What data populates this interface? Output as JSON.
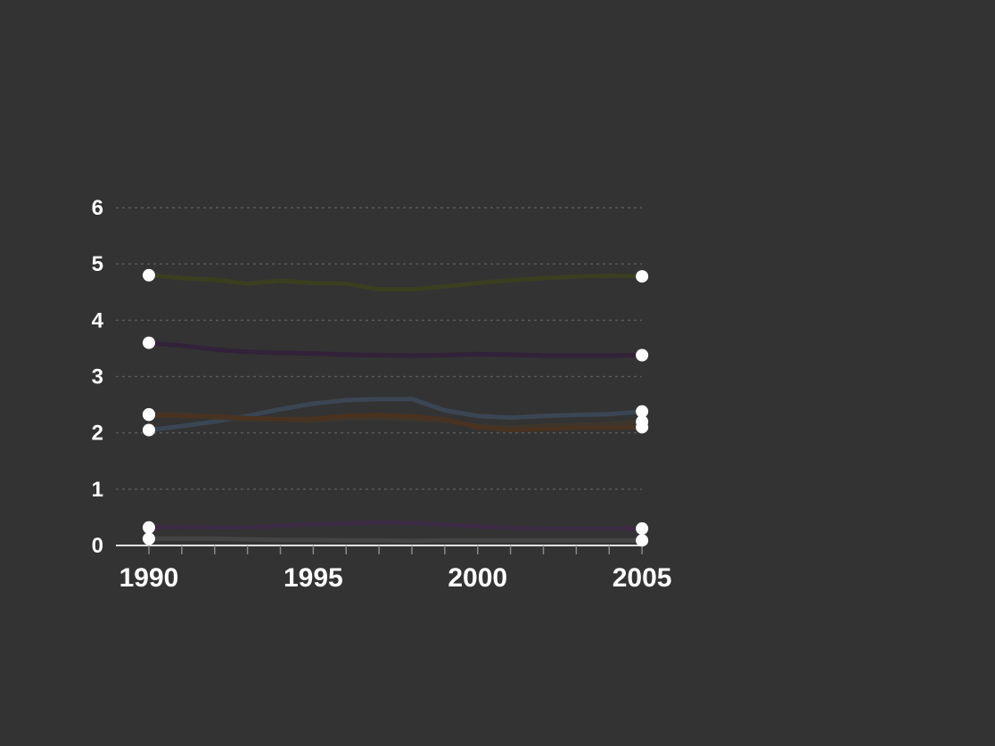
{
  "chart_data": {
    "type": "line",
    "title": "",
    "xlabel": "",
    "ylabel": "",
    "source": "",
    "x": [
      1990,
      1991,
      1992,
      1993,
      1994,
      1995,
      1996,
      1997,
      1998,
      1999,
      2000,
      2001,
      2002,
      2003,
      2004,
      2005
    ],
    "x_ticks": [
      1990,
      1995,
      2000,
      2005
    ],
    "xlim": [
      1990,
      2006
    ],
    "ylim": [
      0,
      6
    ],
    "y_ticks": [
      0,
      1,
      2,
      3,
      4,
      5,
      6
    ],
    "grid": true,
    "series": [
      {
        "name": "",
        "color": "#3b3f1f",
        "values": [
          4.8,
          4.75,
          4.72,
          4.65,
          4.7,
          4.66,
          4.65,
          4.55,
          4.55,
          4.6,
          4.66,
          4.71,
          4.75,
          4.78,
          4.79,
          4.78
        ]
      },
      {
        "name": "",
        "color": "#33213a",
        "values": [
          3.6,
          3.55,
          3.48,
          3.44,
          3.42,
          3.41,
          3.39,
          3.38,
          3.37,
          3.38,
          3.4,
          3.39,
          3.37,
          3.37,
          3.37,
          3.38
        ]
      },
      {
        "name": "",
        "color": "#3a4654",
        "values": [
          2.05,
          2.12,
          2.2,
          2.3,
          2.42,
          2.52,
          2.58,
          2.6,
          2.6,
          2.4,
          2.3,
          2.27,
          2.3,
          2.32,
          2.33,
          2.38
        ]
      },
      {
        "name": "",
        "color": "#3e362c",
        "values": [
          2.33,
          2.33,
          2.28,
          2.24,
          2.24,
          2.21,
          2.26,
          2.26,
          2.24,
          2.22,
          2.12,
          2.09,
          2.13,
          2.14,
          2.16,
          2.2
        ]
      },
      {
        "name": "",
        "color": "#4a3220",
        "values": [
          2.32,
          2.3,
          2.29,
          2.26,
          2.24,
          2.25,
          2.3,
          2.32,
          2.29,
          2.24,
          2.1,
          2.05,
          2.07,
          2.09,
          2.09,
          2.1
        ]
      },
      {
        "name": "",
        "color": "#3d2a44",
        "values": [
          0.32,
          0.33,
          0.32,
          0.32,
          0.35,
          0.38,
          0.39,
          0.41,
          0.4,
          0.37,
          0.34,
          0.31,
          0.3,
          0.3,
          0.3,
          0.3
        ]
      },
      {
        "name": "",
        "color": "#444444",
        "values": [
          0.12,
          0.12,
          0.12,
          0.11,
          0.1,
          0.1,
          0.09,
          0.09,
          0.08,
          0.09,
          0.09,
          0.09,
          0.09,
          0.09,
          0.09,
          0.09
        ]
      }
    ],
    "end_markers_color": "#ffffff",
    "gridline_color": "#5a5a5a",
    "axis_color": "#e0e0e0"
  }
}
